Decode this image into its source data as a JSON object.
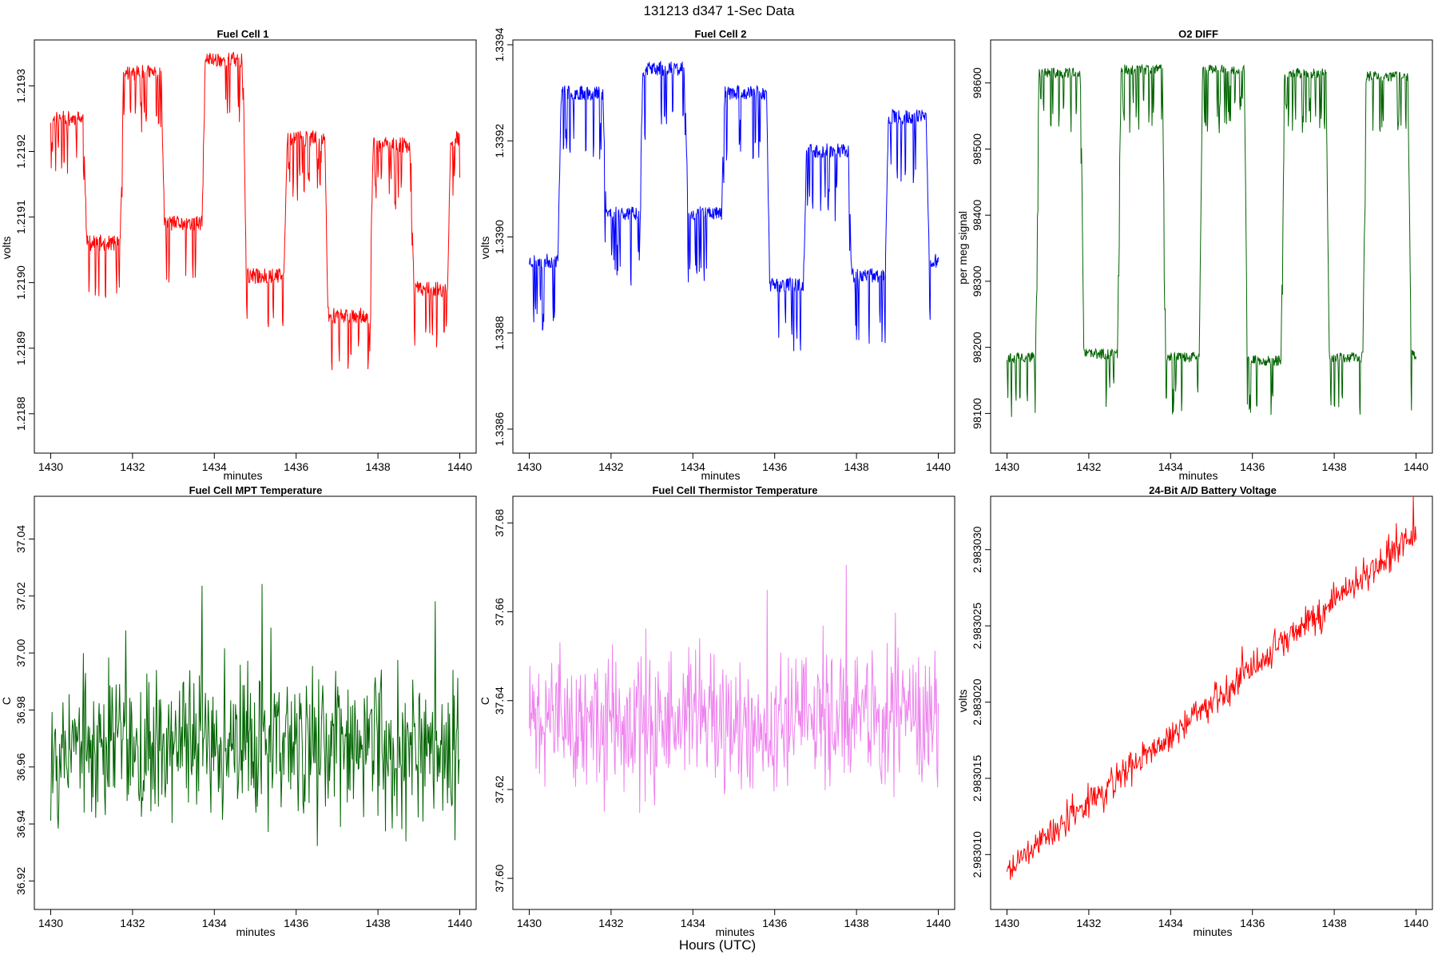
{
  "figure": {
    "title": "131213   d347   1-Sec Data",
    "footer": "Hours (UTC)"
  },
  "chart_data": [
    {
      "type": "line",
      "title": "Fuel Cell 1",
      "xlabel": "minutes",
      "ylabel": "volts",
      "color": "#ff0000",
      "xlim": [
        1429.6,
        1440.4
      ],
      "ylim": [
        1.21874,
        1.21937
      ],
      "xticks": [
        1430,
        1432,
        1434,
        1436,
        1438,
        1440
      ],
      "xtick_labels": [
        "1430",
        "1432",
        "1434",
        "1436",
        "1438",
        "1440"
      ],
      "yticks": [
        1.2188,
        1.2189,
        1.219,
        1.2191,
        1.2192,
        1.2193
      ],
      "ytick_labels": [
        "1.2188",
        "1.2189",
        "1.2190",
        "1.2191",
        "1.2192",
        "1.2193"
      ],
      "pattern": {
        "kind": "steps",
        "levels": [
          1.21925,
          1.21906,
          1.21932,
          1.21909,
          1.21934,
          1.21901,
          1.21922,
          1.21895,
          1.21921,
          1.21899,
          1.21922
        ],
        "starts": [
          1430.0,
          1430.8,
          1431.7,
          1432.7,
          1433.7,
          1434.7,
          1435.7,
          1436.7,
          1437.8,
          1438.8,
          1439.7
        ],
        "noise": 1.2e-05,
        "spike_depth": 9e-05,
        "spike_prob": 0.3,
        "spike_dir": -1,
        "seed": 11
      }
    },
    {
      "type": "line",
      "title": "Fuel Cell 2",
      "xlabel": "minutes",
      "ylabel": "volts",
      "color": "#0000ff",
      "xlim": [
        1429.6,
        1440.4
      ],
      "ylim": [
        1.33855,
        1.33941
      ],
      "xticks": [
        1430,
        1432,
        1434,
        1436,
        1438,
        1440
      ],
      "xtick_labels": [
        "1430",
        "1432",
        "1434",
        "1436",
        "1438",
        "1440"
      ],
      "yticks": [
        1.3386,
        1.3388,
        1.339,
        1.3392,
        1.3394
      ],
      "ytick_labels": [
        "1.3386",
        "1.3388",
        "1.3390",
        "1.3392",
        "1.3394"
      ],
      "pattern": {
        "kind": "steps",
        "levels": [
          1.33895,
          1.3393,
          1.33905,
          1.33935,
          1.33905,
          1.3393,
          1.3389,
          1.33918,
          1.33892,
          1.33925,
          1.33895
        ],
        "starts": [
          1430.0,
          1430.7,
          1431.8,
          1432.7,
          1433.8,
          1434.7,
          1435.8,
          1436.7,
          1437.8,
          1438.7,
          1439.7
        ],
        "noise": 1.5e-05,
        "spike_depth": 0.00014,
        "spike_prob": 0.3,
        "spike_dir": -1,
        "seed": 23
      }
    },
    {
      "type": "line",
      "title": "O2 DIFF",
      "xlabel": "minutes",
      "ylabel": "per meg signal",
      "color": "#006400",
      "xlim": [
        1429.6,
        1440.4
      ],
      "ylim": [
        98040,
        98665
      ],
      "xticks": [
        1430,
        1432,
        1434,
        1436,
        1438,
        1440
      ],
      "xtick_labels": [
        "1430",
        "1432",
        "1434",
        "1436",
        "1438",
        "1440"
      ],
      "yticks": [
        98100,
        98200,
        98300,
        98400,
        98500,
        98600
      ],
      "ytick_labels": [
        "98100",
        "98200",
        "98300",
        "98400",
        "98500",
        "98600"
      ],
      "pattern": {
        "kind": "steps",
        "levels": [
          98185,
          98615,
          98190,
          98620,
          98185,
          98620,
          98180,
          98615,
          98185,
          98610,
          98190
        ],
        "starts": [
          1430.0,
          1430.7,
          1431.8,
          1432.7,
          1433.8,
          1434.7,
          1435.8,
          1436.7,
          1437.8,
          1438.7,
          1439.8
        ],
        "noise": 8,
        "spike_depth": 90,
        "spike_prob": 0.3,
        "spike_dir": 0,
        "seed": 37
      }
    },
    {
      "type": "line",
      "title": "Fuel Cell MPT Temperature",
      "xlabel": "minutes",
      "ylabel": "C",
      "color": "#006400",
      "xlim": [
        1429.6,
        1440.4
      ],
      "ylim": [
        36.91,
        37.055
      ],
      "xticks": [
        1430,
        1432,
        1434,
        1436,
        1438,
        1440
      ],
      "xtick_labels": [
        "1430",
        "1432",
        "1434",
        "1436",
        "1438",
        "1440"
      ],
      "yticks": [
        36.92,
        36.94,
        36.96,
        36.98,
        37.0,
        37.02,
        37.04
      ],
      "ytick_labels": [
        "36.92",
        "36.94",
        "36.96",
        "36.98",
        "37.00",
        "37.02",
        "37.04"
      ],
      "pattern": {
        "kind": "noise",
        "mean_start": 36.968,
        "mean_end": 36.968,
        "amplitude": 0.024,
        "points": 600,
        "seed": 53
      }
    },
    {
      "type": "line",
      "title": "Fuel Cell Thermistor Temperature",
      "xlabel": "minutes",
      "ylabel": "C",
      "color": "#ee82ee",
      "xlim": [
        1429.6,
        1440.4
      ],
      "ylim": [
        37.593,
        37.686
      ],
      "xticks": [
        1430,
        1432,
        1434,
        1436,
        1438,
        1440
      ],
      "xtick_labels": [
        "1430",
        "1432",
        "1434",
        "1436",
        "1438",
        "1440"
      ],
      "yticks": [
        37.6,
        37.62,
        37.64,
        37.66,
        37.68
      ],
      "ytick_labels": [
        "37.60",
        "37.62",
        "37.64",
        "37.66",
        "37.68"
      ],
      "pattern": {
        "kind": "noise",
        "mean_start": 37.635,
        "mean_end": 37.635,
        "amplitude": 0.014,
        "points": 600,
        "seed": 71
      }
    },
    {
      "type": "line",
      "title": "24-Bit A/D Battery Voltage",
      "xlabel": "minutes",
      "ylabel": "volts",
      "color": "#ff0000",
      "xlim": [
        1429.6,
        1440.4
      ],
      "ylim": [
        2.9830064,
        2.9830335
      ],
      "xticks": [
        1430,
        1432,
        1434,
        1436,
        1438,
        1440
      ],
      "xtick_labels": [
        "1430",
        "1432",
        "1434",
        "1436",
        "1438",
        "1440"
      ],
      "yticks": [
        2.98301,
        2.983015,
        2.98302,
        2.983025,
        2.98303
      ],
      "ytick_labels": [
        "2.983010",
        "2.983015",
        "2.983020",
        "2.983025",
        "2.983030"
      ],
      "pattern": {
        "kind": "noise",
        "mean_start": 2.983009,
        "mean_end": 2.983031,
        "amplitude": 1e-06,
        "points": 600,
        "seed": 89
      }
    }
  ]
}
